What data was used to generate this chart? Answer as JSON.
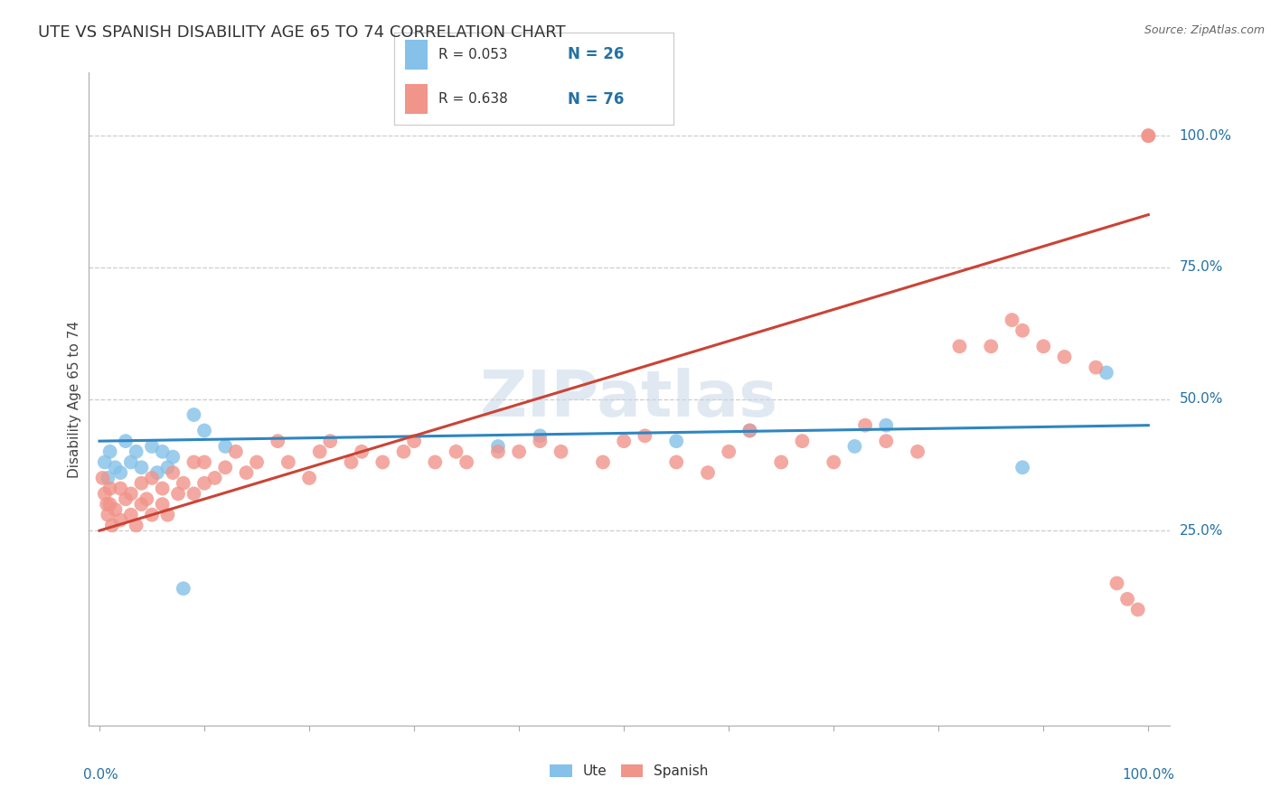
{
  "title": "UTE VS SPANISH DISABILITY AGE 65 TO 74 CORRELATION CHART",
  "source": "Source: ZipAtlas.com",
  "ylabel": "Disability Age 65 to 74",
  "ute_R": 0.053,
  "ute_N": 26,
  "spanish_R": 0.638,
  "spanish_N": 76,
  "ute_color": "#85C1E9",
  "spanish_color": "#F1948A",
  "ute_line_color": "#2E86C1",
  "spanish_line_color": "#CB4335",
  "legend_box_color": "#cccccc",
  "grid_color": "#cccccc",
  "watermark_color": "#C8D8E8",
  "right_label_color": "#2471A3",
  "title_color": "#333333",
  "source_color": "#666666",
  "watermark": "ZIPatlas",
  "ytick_vals": [
    0.25,
    0.5,
    0.75,
    1.0
  ],
  "ytick_labels": [
    "25.0%",
    "50.0%",
    "75.0%",
    "100.0%"
  ],
  "ylim_low": -0.12,
  "ylim_high": 1.12,
  "xlim_low": -0.01,
  "xlim_high": 1.02,
  "ute_x": [
    0.005,
    0.008,
    0.01,
    0.015,
    0.02,
    0.025,
    0.03,
    0.035,
    0.04,
    0.05,
    0.055,
    0.06,
    0.065,
    0.07,
    0.08,
    0.09,
    0.1,
    0.12,
    0.38,
    0.42,
    0.55,
    0.62,
    0.72,
    0.75,
    0.88,
    0.96
  ],
  "ute_y": [
    0.38,
    0.35,
    0.4,
    0.37,
    0.36,
    0.42,
    0.38,
    0.4,
    0.37,
    0.41,
    0.36,
    0.4,
    0.37,
    0.39,
    0.14,
    0.47,
    0.44,
    0.41,
    0.41,
    0.43,
    0.42,
    0.44,
    0.41,
    0.45,
    0.37,
    0.55
  ],
  "spanish_x": [
    0.003,
    0.005,
    0.007,
    0.008,
    0.01,
    0.01,
    0.012,
    0.015,
    0.02,
    0.02,
    0.025,
    0.03,
    0.03,
    0.035,
    0.04,
    0.04,
    0.045,
    0.05,
    0.05,
    0.06,
    0.06,
    0.065,
    0.07,
    0.075,
    0.08,
    0.09,
    0.09,
    0.1,
    0.1,
    0.11,
    0.12,
    0.13,
    0.14,
    0.15,
    0.17,
    0.18,
    0.2,
    0.21,
    0.22,
    0.24,
    0.25,
    0.27,
    0.29,
    0.3,
    0.32,
    0.34,
    0.35,
    0.38,
    0.4,
    0.42,
    0.44,
    0.48,
    0.5,
    0.52,
    0.55,
    0.58,
    0.6,
    0.62,
    0.65,
    0.67,
    0.7,
    0.73,
    0.75,
    0.78,
    0.82,
    0.85,
    0.87,
    0.88,
    0.9,
    0.92,
    0.95,
    0.97,
    0.98,
    0.99,
    1.0,
    1.0
  ],
  "spanish_y": [
    0.35,
    0.32,
    0.3,
    0.28,
    0.3,
    0.33,
    0.26,
    0.29,
    0.27,
    0.33,
    0.31,
    0.28,
    0.32,
    0.26,
    0.3,
    0.34,
    0.31,
    0.28,
    0.35,
    0.33,
    0.3,
    0.28,
    0.36,
    0.32,
    0.34,
    0.32,
    0.38,
    0.34,
    0.38,
    0.35,
    0.37,
    0.4,
    0.36,
    0.38,
    0.42,
    0.38,
    0.35,
    0.4,
    0.42,
    0.38,
    0.4,
    0.38,
    0.4,
    0.42,
    0.38,
    0.4,
    0.38,
    0.4,
    0.4,
    0.42,
    0.4,
    0.38,
    0.42,
    0.43,
    0.38,
    0.36,
    0.4,
    0.44,
    0.38,
    0.42,
    0.38,
    0.45,
    0.42,
    0.4,
    0.6,
    0.6,
    0.65,
    0.63,
    0.6,
    0.58,
    0.56,
    0.15,
    0.12,
    0.1,
    1.0,
    1.0
  ]
}
